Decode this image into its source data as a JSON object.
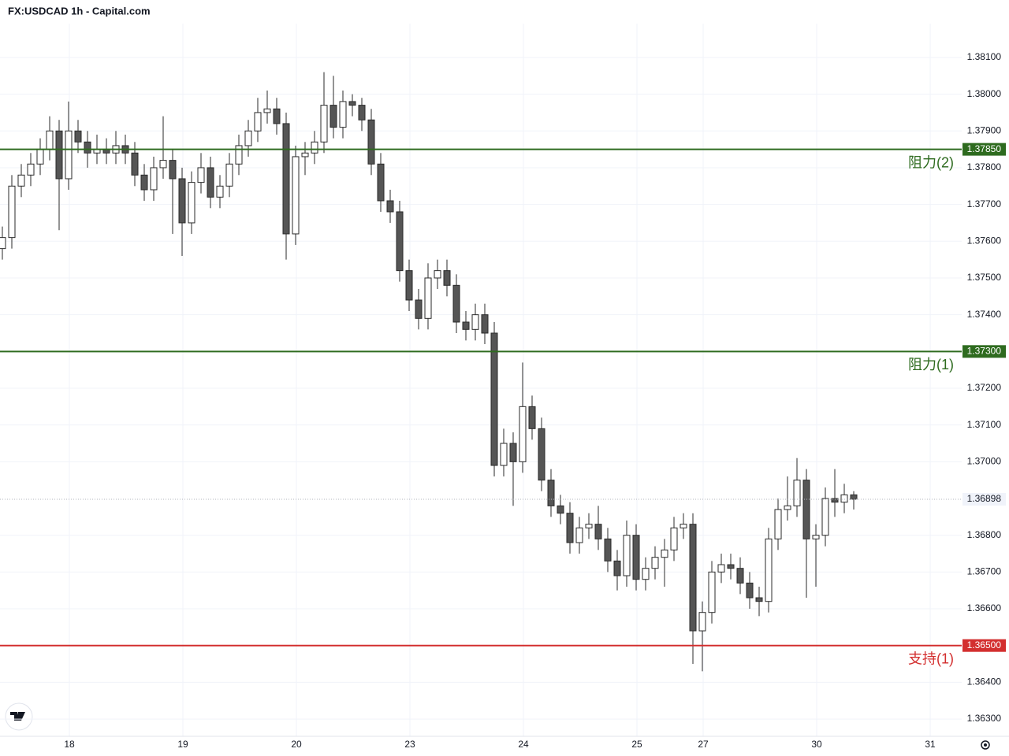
{
  "chart_data": {
    "type": "candlestick",
    "title": "FX:USDCAD 1h - Capital.com",
    "up_color": "#ffffff",
    "down_color": "#555555",
    "outline_color": "#2a2a2a",
    "ylim": [
      1.36253,
      1.38192
    ],
    "yticks": [
      {
        "value": 1.381,
        "label": "1.38100"
      },
      {
        "value": 1.38,
        "label": "1.38000"
      },
      {
        "value": 1.379,
        "label": "1.37900"
      },
      {
        "value": 1.378,
        "label": "1.37800"
      },
      {
        "value": 1.377,
        "label": "1.37700"
      },
      {
        "value": 1.376,
        "label": "1.37600"
      },
      {
        "value": 1.375,
        "label": "1.37500"
      },
      {
        "value": 1.374,
        "label": "1.37400"
      },
      {
        "value": 1.372,
        "label": "1.37200"
      },
      {
        "value": 1.371,
        "label": "1.37100"
      },
      {
        "value": 1.37,
        "label": "1.37000"
      },
      {
        "value": 1.368,
        "label": "1.36800"
      },
      {
        "value": 1.367,
        "label": "1.36700"
      },
      {
        "value": 1.366,
        "label": "1.36600"
      },
      {
        "value": 1.364,
        "label": "1.36400"
      },
      {
        "value": 1.363,
        "label": "1.36300"
      }
    ],
    "xlim": [
      -0.5,
      202.83
    ],
    "xticks": [
      {
        "value": 14.17,
        "label": "18"
      },
      {
        "value": 38.17,
        "label": "19"
      },
      {
        "value": 62.17,
        "label": "20"
      },
      {
        "value": 86.17,
        "label": "23"
      },
      {
        "value": 110.17,
        "label": "24"
      },
      {
        "value": 134.17,
        "label": "25"
      },
      {
        "value": 148.17,
        "label": "27"
      },
      {
        "value": 172.17,
        "label": "30"
      },
      {
        "value": 196.17,
        "label": "31"
      }
    ],
    "grid": true,
    "levels": [
      {
        "value": 1.3785,
        "value_label": "1.37850",
        "name": "阻力(2)",
        "color": "#2e6b1f"
      },
      {
        "value": 1.373,
        "value_label": "1.37300",
        "name": "阻力(1)",
        "color": "#2e6b1f"
      },
      {
        "value": 1.365,
        "value_label": "1.36500",
        "name": "支持(1)",
        "color": "#d32f2f"
      }
    ],
    "last_price": 1.36898,
    "x": [
      0,
      2,
      4,
      6,
      8,
      10,
      12,
      14,
      16,
      18,
      20,
      22,
      24,
      26,
      28,
      30,
      32,
      34,
      36,
      38,
      40,
      42,
      44,
      46,
      48,
      50,
      52,
      54,
      56,
      58,
      60,
      62,
      64,
      66,
      68,
      70,
      72,
      74,
      76,
      78,
      80,
      82,
      84,
      86,
      88,
      90,
      92,
      94,
      96,
      98,
      100,
      102,
      104,
      106,
      108,
      110,
      112,
      114,
      116,
      118,
      120,
      122,
      124,
      126,
      128,
      130,
      132,
      134,
      136,
      138,
      140,
      142,
      144,
      146,
      148,
      150,
      152,
      154,
      156,
      158,
      160,
      162,
      164,
      166,
      168,
      170,
      172,
      174,
      176,
      178,
      180
    ],
    "candles": [
      [
        1.3758,
        1.3764,
        1.3755,
        1.3761
      ],
      [
        1.3761,
        1.3778,
        1.3758,
        1.3775
      ],
      [
        1.3775,
        1.3781,
        1.3772,
        1.3778
      ],
      [
        1.3778,
        1.3784,
        1.3775,
        1.3781
      ],
      [
        1.3781,
        1.3788,
        1.3778,
        1.3785
      ],
      [
        1.3785,
        1.3794,
        1.3782,
        1.379
      ],
      [
        1.379,
        1.3793,
        1.3763,
        1.3777
      ],
      [
        1.3777,
        1.3798,
        1.3774,
        1.379
      ],
      [
        1.379,
        1.3793,
        1.3784,
        1.3787
      ],
      [
        1.3787,
        1.379,
        1.378,
        1.3784
      ],
      [
        1.3784,
        1.3789,
        1.3781,
        1.3785
      ],
      [
        1.3785,
        1.3788,
        1.3781,
        1.3784
      ],
      [
        1.3784,
        1.379,
        1.3781,
        1.3786
      ],
      [
        1.3786,
        1.3789,
        1.3781,
        1.3784
      ],
      [
        1.3784,
        1.3787,
        1.3775,
        1.3778
      ],
      [
        1.3778,
        1.3781,
        1.3771,
        1.3774
      ],
      [
        1.3774,
        1.3783,
        1.3771,
        1.378
      ],
      [
        1.378,
        1.3794,
        1.3777,
        1.3782
      ],
      [
        1.3782,
        1.3785,
        1.3762,
        1.3777
      ],
      [
        1.3777,
        1.378,
        1.3756,
        1.3765
      ],
      [
        1.3765,
        1.3779,
        1.3762,
        1.3776
      ],
      [
        1.3776,
        1.3784,
        1.3773,
        1.378
      ],
      [
        1.378,
        1.3783,
        1.3769,
        1.3772
      ],
      [
        1.3772,
        1.3778,
        1.3769,
        1.3775
      ],
      [
        1.3775,
        1.3784,
        1.3772,
        1.3781
      ],
      [
        1.3781,
        1.3789,
        1.3778,
        1.3786
      ],
      [
        1.3786,
        1.3793,
        1.3783,
        1.379
      ],
      [
        1.379,
        1.3799,
        1.3787,
        1.3795
      ],
      [
        1.3795,
        1.3801,
        1.3792,
        1.3796
      ],
      [
        1.3796,
        1.3799,
        1.3789,
        1.3792
      ],
      [
        1.3792,
        1.3795,
        1.3755,
        1.3762
      ],
      [
        1.3762,
        1.3786,
        1.3759,
        1.3783
      ],
      [
        1.3783,
        1.3787,
        1.3778,
        1.3784
      ],
      [
        1.3784,
        1.379,
        1.3781,
        1.3787
      ],
      [
        1.3787,
        1.3806,
        1.3784,
        1.3797
      ],
      [
        1.3797,
        1.3805,
        1.3788,
        1.3791
      ],
      [
        1.3791,
        1.3801,
        1.3788,
        1.3798
      ],
      [
        1.3798,
        1.38,
        1.3794,
        1.3797
      ],
      [
        1.3797,
        1.3799,
        1.379,
        1.3793
      ],
      [
        1.3793,
        1.3796,
        1.3778,
        1.3781
      ],
      [
        1.3781,
        1.3784,
        1.3768,
        1.3771
      ],
      [
        1.3771,
        1.3774,
        1.3765,
        1.3768
      ],
      [
        1.3768,
        1.3771,
        1.3749,
        1.3752
      ],
      [
        1.3752,
        1.3755,
        1.3741,
        1.3744
      ],
      [
        1.3744,
        1.3747,
        1.3736,
        1.3739
      ],
      [
        1.3739,
        1.3754,
        1.3736,
        1.375
      ],
      [
        1.375,
        1.3755,
        1.3747,
        1.3752
      ],
      [
        1.3752,
        1.3755,
        1.3745,
        1.3748
      ],
      [
        1.3748,
        1.3751,
        1.3735,
        1.3738
      ],
      [
        1.3738,
        1.3741,
        1.3733,
        1.3736
      ],
      [
        1.3736,
        1.3743,
        1.3733,
        1.374
      ],
      [
        1.374,
        1.3743,
        1.3732,
        1.3735
      ],
      [
        1.3735,
        1.3738,
        1.3696,
        1.3699
      ],
      [
        1.3699,
        1.3709,
        1.3696,
        1.3705
      ],
      [
        1.3705,
        1.3708,
        1.3688,
        1.37
      ],
      [
        1.37,
        1.3727,
        1.3697,
        1.3715
      ],
      [
        1.3715,
        1.3718,
        1.3706,
        1.3709
      ],
      [
        1.3709,
        1.3712,
        1.3692,
        1.3695
      ],
      [
        1.3695,
        1.3698,
        1.3685,
        1.3688
      ],
      [
        1.3688,
        1.3691,
        1.3683,
        1.3686
      ],
      [
        1.3686,
        1.3689,
        1.3675,
        1.3678
      ],
      [
        1.3678,
        1.3685,
        1.3675,
        1.3682
      ],
      [
        1.3682,
        1.3686,
        1.3679,
        1.3683
      ],
      [
        1.3683,
        1.3688,
        1.3676,
        1.3679
      ],
      [
        1.3679,
        1.3682,
        1.367,
        1.3673
      ],
      [
        1.3673,
        1.3676,
        1.3665,
        1.3669
      ],
      [
        1.3669,
        1.3684,
        1.3666,
        1.368
      ],
      [
        1.368,
        1.3683,
        1.3665,
        1.3668
      ],
      [
        1.3668,
        1.3674,
        1.3665,
        1.3671
      ],
      [
        1.3671,
        1.3677,
        1.3668,
        1.3674
      ],
      [
        1.3674,
        1.3679,
        1.3666,
        1.3676
      ],
      [
        1.3676,
        1.3685,
        1.3673,
        1.3682
      ],
      [
        1.3682,
        1.3686,
        1.3679,
        1.3683
      ],
      [
        1.3683,
        1.3686,
        1.3645,
        1.3654
      ],
      [
        1.3654,
        1.3662,
        1.3643,
        1.3659
      ],
      [
        1.3659,
        1.3673,
        1.3656,
        1.367
      ],
      [
        1.367,
        1.3675,
        1.3667,
        1.3672
      ],
      [
        1.3672,
        1.3675,
        1.3668,
        1.3671
      ],
      [
        1.3671,
        1.3674,
        1.3664,
        1.3667
      ],
      [
        1.3667,
        1.367,
        1.366,
        1.3663
      ],
      [
        1.3663,
        1.3666,
        1.3658,
        1.3662
      ],
      [
        1.3662,
        1.3682,
        1.3659,
        1.3679
      ],
      [
        1.3679,
        1.369,
        1.3676,
        1.3687
      ],
      [
        1.3687,
        1.3696,
        1.3684,
        1.3688
      ],
      [
        1.3688,
        1.3701,
        1.3685,
        1.3695
      ],
      [
        1.3695,
        1.3698,
        1.3663,
        1.3679
      ],
      [
        1.3679,
        1.3683,
        1.3666,
        1.368
      ],
      [
        1.368,
        1.3693,
        1.3677,
        1.369
      ],
      [
        1.369,
        1.3698,
        1.3685,
        1.3689
      ],
      [
        1.3689,
        1.3694,
        1.3686,
        1.3691
      ],
      [
        1.3691,
        1.3692,
        1.3687,
        1.36898
      ]
    ]
  }
}
